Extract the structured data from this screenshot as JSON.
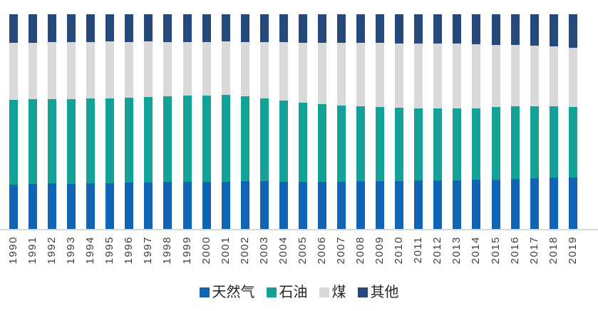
{
  "chart": {
    "background_color": "#ffffff",
    "axis_line_color": "#d9d9d9",
    "tick_label_color": "#3f3f3f",
    "legend_text_color": "#262626"
  },
  "chart_data": {
    "type": "bar",
    "variant": "100-percent-stacked-column",
    "stack_order_bottom_to_top": [
      "天然气",
      "石油",
      "煤",
      "其他"
    ],
    "ylim": [
      0,
      100
    ],
    "grid": false,
    "y_axis_visible": false,
    "legend_position": "bottom",
    "x_tick_rotation_deg": 90,
    "categories": [
      "1990",
      "1991",
      "1992",
      "1993",
      "1994",
      "1995",
      "1996",
      "1997",
      "1998",
      "1999",
      "2000",
      "2001",
      "2002",
      "2003",
      "2004",
      "2005",
      "2006",
      "2007",
      "2008",
      "2009",
      "2010",
      "2011",
      "2012",
      "2013",
      "2014",
      "2015",
      "2016",
      "2017",
      "2018",
      "2019"
    ],
    "series": [
      {
        "name": "天然气",
        "color": "#1066b4",
        "values": [
          20.7,
          20.9,
          21.1,
          21.0,
          21.1,
          21.2,
          21.5,
          21.6,
          21.9,
          21.8,
          21.9,
          22.0,
          22.3,
          22.1,
          21.9,
          21.8,
          21.8,
          21.9,
          22.3,
          22.2,
          22.4,
          22.5,
          22.6,
          22.7,
          22.8,
          23.0,
          23.4,
          23.6,
          23.8,
          24.0
        ]
      },
      {
        "name": "石油",
        "color": "#15a296",
        "values": [
          39.4,
          39.4,
          39.5,
          39.5,
          39.7,
          39.7,
          39.5,
          39.8,
          39.8,
          40.2,
          40.2,
          40.3,
          39.5,
          38.6,
          37.8,
          36.9,
          36.2,
          35.7,
          34.7,
          34.5,
          34.0,
          33.7,
          33.4,
          33.5,
          33.5,
          33.7,
          33.7,
          33.5,
          33.3,
          32.9
        ]
      },
      {
        "name": "煤",
        "color": "#d9d9d9",
        "values": [
          26.6,
          26.5,
          26.4,
          26.6,
          26.4,
          26.4,
          26.2,
          25.9,
          25.4,
          25.2,
          25.1,
          25.0,
          25.4,
          26.4,
          27.2,
          28.1,
          28.8,
          29.1,
          29.7,
          29.9,
          30.1,
          30.3,
          30.4,
          30.1,
          29.9,
          29.1,
          28.5,
          28.3,
          27.8,
          27.6
        ]
      },
      {
        "name": "其他",
        "color": "#26497c",
        "values": [
          13.3,
          13.2,
          13.0,
          12.9,
          12.8,
          12.7,
          12.8,
          12.7,
          12.9,
          12.8,
          12.8,
          12.7,
          12.8,
          12.9,
          13.1,
          13.2,
          13.2,
          13.3,
          13.3,
          13.4,
          13.5,
          13.5,
          13.6,
          13.7,
          13.8,
          14.2,
          14.4,
          14.6,
          15.1,
          15.5
        ]
      }
    ]
  }
}
